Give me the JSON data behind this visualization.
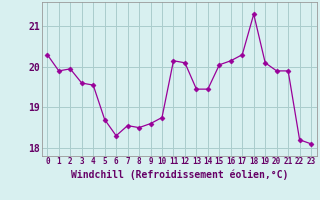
{
  "x": [
    0,
    1,
    2,
    3,
    4,
    5,
    6,
    7,
    8,
    9,
    10,
    11,
    12,
    13,
    14,
    15,
    16,
    17,
    18,
    19,
    20,
    21,
    22,
    23
  ],
  "y": [
    20.3,
    19.9,
    19.95,
    19.6,
    19.55,
    18.7,
    18.3,
    18.55,
    18.5,
    18.6,
    18.75,
    20.15,
    20.1,
    19.45,
    19.45,
    20.05,
    20.15,
    20.3,
    21.3,
    20.1,
    19.9,
    19.9,
    18.2,
    18.1
  ],
  "line_color": "#990099",
  "marker": "D",
  "marker_size": 2.5,
  "bg_color": "#d8f0f0",
  "grid_color": "#aacccc",
  "xlabel": "Windchill (Refroidissement éolien,°C)",
  "xlabel_color": "#660066",
  "xlabel_fontsize": 7,
  "tick_color": "#660066",
  "ytick_fontsize": 7,
  "xtick_fontsize": 5.5,
  "ylim": [
    17.8,
    21.6
  ],
  "yticks": [
    18,
    19,
    20,
    21
  ],
  "xticks": [
    0,
    1,
    2,
    3,
    4,
    5,
    6,
    7,
    8,
    9,
    10,
    11,
    12,
    13,
    14,
    15,
    16,
    17,
    18,
    19,
    20,
    21,
    22,
    23
  ],
  "xtick_labels": [
    "0",
    "1",
    "2",
    "3",
    "4",
    "5",
    "6",
    "7",
    "8",
    "9",
    "10",
    "11",
    "12",
    "13",
    "14",
    "15",
    "16",
    "17",
    "18",
    "19",
    "20",
    "21",
    "22",
    "23"
  ]
}
